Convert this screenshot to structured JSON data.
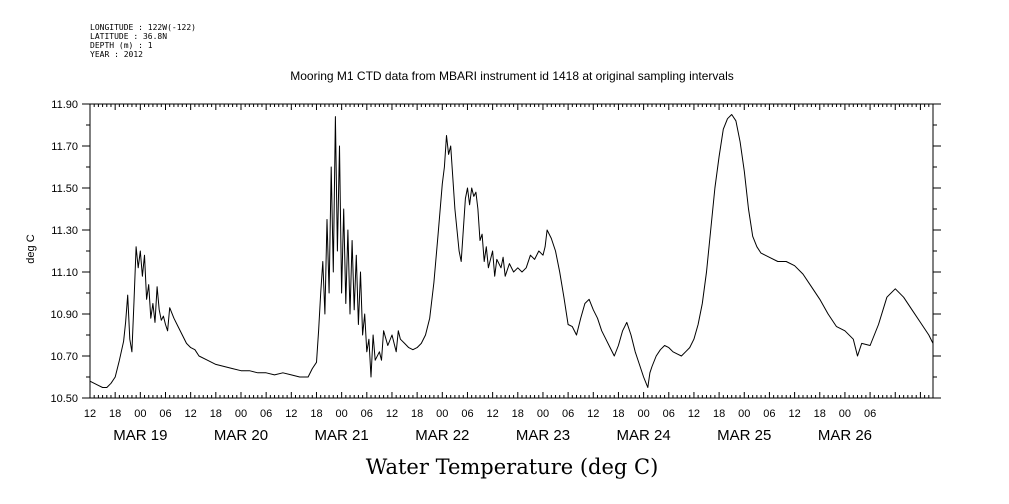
{
  "header_info": [
    "LONGITUDE : 122W(-122)",
    "LATITUDE : 36.8N",
    "DEPTH (m) : 1",
    "YEAR : 2012"
  ],
  "chart_data": {
    "type": "line",
    "title": "Mooring M1 CTD data from MBARI instrument id 1418 at original sampling intervals",
    "xlabel": "Water Temperature (deg C)",
    "ylabel": "deg C",
    "ylim": [
      10.5,
      11.9
    ],
    "yticks": [
      "10.50",
      "10.70",
      "10.90",
      "11.10",
      "11.30",
      "11.50",
      "11.70",
      "11.90"
    ],
    "xlim": [
      "2012-03-18T12:00",
      "2012-03-26T21:00"
    ],
    "hour_ticks": [
      "12",
      "18",
      "00",
      "06",
      "12",
      "18",
      "00",
      "06",
      "12",
      "18",
      "00",
      "06",
      "12",
      "18",
      "00",
      "06",
      "12",
      "18",
      "00",
      "06",
      "12",
      "18",
      "00",
      "06",
      "12",
      "18",
      "00",
      "06",
      "12",
      "18",
      "00",
      "06"
    ],
    "day_labels": [
      "MAR 19",
      "MAR 20",
      "MAR 21",
      "MAR 22",
      "MAR 23",
      "MAR 24",
      "MAR 25",
      "MAR 26"
    ],
    "line_color": "#000000",
    "series": [
      {
        "points": [
          [
            "2012-03-18T12:00",
            10.58
          ],
          [
            "2012-03-18T13:00",
            10.57
          ],
          [
            "2012-03-18T14:00",
            10.56
          ],
          [
            "2012-03-18T15:00",
            10.55
          ],
          [
            "2012-03-18T16:00",
            10.55
          ],
          [
            "2012-03-18T17:00",
            10.57
          ],
          [
            "2012-03-18T18:00",
            10.6
          ],
          [
            "2012-03-18T19:00",
            10.68
          ],
          [
            "2012-03-18T20:00",
            10.77
          ],
          [
            "2012-03-18T20:30",
            10.86
          ],
          [
            "2012-03-18T21:00",
            10.99
          ],
          [
            "2012-03-18T21:30",
            10.78
          ],
          [
            "2012-03-18T22:00",
            10.72
          ],
          [
            "2012-03-18T22:30",
            10.96
          ],
          [
            "2012-03-18T23:00",
            11.22
          ],
          [
            "2012-03-18T23:30",
            11.12
          ],
          [
            "2012-03-19T00:00",
            11.2
          ],
          [
            "2012-03-19T00:30",
            11.08
          ],
          [
            "2012-03-19T01:00",
            11.18
          ],
          [
            "2012-03-19T01:30",
            10.97
          ],
          [
            "2012-03-19T02:00",
            11.04
          ],
          [
            "2012-03-19T02:30",
            10.88
          ],
          [
            "2012-03-19T03:00",
            10.95
          ],
          [
            "2012-03-19T03:30",
            10.86
          ],
          [
            "2012-03-19T04:00",
            11.03
          ],
          [
            "2012-03-19T04:30",
            10.92
          ],
          [
            "2012-03-19T05:00",
            10.87
          ],
          [
            "2012-03-19T05:30",
            10.89
          ],
          [
            "2012-03-19T06:00",
            10.85
          ],
          [
            "2012-03-19T06:30",
            10.82
          ],
          [
            "2012-03-19T07:00",
            10.93
          ],
          [
            "2012-03-19T08:00",
            10.88
          ],
          [
            "2012-03-19T09:00",
            10.84
          ],
          [
            "2012-03-19T10:00",
            10.8
          ],
          [
            "2012-03-19T11:00",
            10.76
          ],
          [
            "2012-03-19T12:00",
            10.74
          ],
          [
            "2012-03-19T13:00",
            10.73
          ],
          [
            "2012-03-19T14:00",
            10.7
          ],
          [
            "2012-03-19T16:00",
            10.68
          ],
          [
            "2012-03-19T18:00",
            10.66
          ],
          [
            "2012-03-19T20:00",
            10.65
          ],
          [
            "2012-03-19T22:00",
            10.64
          ],
          [
            "2012-03-20T00:00",
            10.63
          ],
          [
            "2012-03-20T02:00",
            10.63
          ],
          [
            "2012-03-20T04:00",
            10.62
          ],
          [
            "2012-03-20T06:00",
            10.62
          ],
          [
            "2012-03-20T08:00",
            10.61
          ],
          [
            "2012-03-20T10:00",
            10.62
          ],
          [
            "2012-03-20T12:00",
            10.61
          ],
          [
            "2012-03-20T14:00",
            10.6
          ],
          [
            "2012-03-20T16:00",
            10.6
          ],
          [
            "2012-03-20T17:00",
            10.64
          ],
          [
            "2012-03-20T18:00",
            10.67
          ],
          [
            "2012-03-20T18:30",
            10.82
          ],
          [
            "2012-03-20T19:00",
            11.0
          ],
          [
            "2012-03-20T19:30",
            11.15
          ],
          [
            "2012-03-20T20:00",
            10.9
          ],
          [
            "2012-03-20T20:30",
            11.35
          ],
          [
            "2012-03-20T21:00",
            11.0
          ],
          [
            "2012-03-20T21:30",
            11.6
          ],
          [
            "2012-03-20T22:00",
            11.1
          ],
          [
            "2012-03-20T22:30",
            11.84
          ],
          [
            "2012-03-20T23:00",
            11.2
          ],
          [
            "2012-03-20T23:30",
            11.7
          ],
          [
            "2012-03-21T00:00",
            11.0
          ],
          [
            "2012-03-21T00:30",
            11.4
          ],
          [
            "2012-03-21T01:00",
            10.95
          ],
          [
            "2012-03-21T01:30",
            11.3
          ],
          [
            "2012-03-21T02:00",
            10.9
          ],
          [
            "2012-03-21T02:30",
            11.25
          ],
          [
            "2012-03-21T03:00",
            10.92
          ],
          [
            "2012-03-21T03:30",
            11.18
          ],
          [
            "2012-03-21T04:00",
            10.85
          ],
          [
            "2012-03-21T04:30",
            11.1
          ],
          [
            "2012-03-21T05:00",
            10.8
          ],
          [
            "2012-03-21T05:30",
            10.9
          ],
          [
            "2012-03-21T06:00",
            10.72
          ],
          [
            "2012-03-21T06:30",
            10.78
          ],
          [
            "2012-03-21T07:00",
            10.6
          ],
          [
            "2012-03-21T07:30",
            10.8
          ],
          [
            "2012-03-21T08:00",
            10.68
          ],
          [
            "2012-03-21T09:00",
            10.72
          ],
          [
            "2012-03-21T09:30",
            10.68
          ],
          [
            "2012-03-21T10:00",
            10.82
          ],
          [
            "2012-03-21T11:00",
            10.75
          ],
          [
            "2012-03-21T12:00",
            10.8
          ],
          [
            "2012-03-21T13:00",
            10.72
          ],
          [
            "2012-03-21T13:30",
            10.82
          ],
          [
            "2012-03-21T14:00",
            10.78
          ],
          [
            "2012-03-21T15:00",
            10.76
          ],
          [
            "2012-03-21T16:00",
            10.74
          ],
          [
            "2012-03-21T17:00",
            10.73
          ],
          [
            "2012-03-21T18:00",
            10.74
          ],
          [
            "2012-03-21T19:00",
            10.76
          ],
          [
            "2012-03-21T20:00",
            10.8
          ],
          [
            "2012-03-21T21:00",
            10.88
          ],
          [
            "2012-03-21T22:00",
            11.05
          ],
          [
            "2012-03-21T23:00",
            11.28
          ],
          [
            "2012-03-22T00:00",
            11.52
          ],
          [
            "2012-03-22T00:30",
            11.6
          ],
          [
            "2012-03-22T01:00",
            11.75
          ],
          [
            "2012-03-22T01:30",
            11.66
          ],
          [
            "2012-03-22T02:00",
            11.7
          ],
          [
            "2012-03-22T02:30",
            11.55
          ],
          [
            "2012-03-22T03:00",
            11.4
          ],
          [
            "2012-03-22T03:30",
            11.3
          ],
          [
            "2012-03-22T04:00",
            11.2
          ],
          [
            "2012-03-22T04:30",
            11.15
          ],
          [
            "2012-03-22T05:00",
            11.3
          ],
          [
            "2012-03-22T05:30",
            11.45
          ],
          [
            "2012-03-22T06:00",
            11.5
          ],
          [
            "2012-03-22T06:30",
            11.42
          ],
          [
            "2012-03-22T07:00",
            11.5
          ],
          [
            "2012-03-22T07:30",
            11.46
          ],
          [
            "2012-03-22T08:00",
            11.48
          ],
          [
            "2012-03-22T08:30",
            11.4
          ],
          [
            "2012-03-22T09:00",
            11.25
          ],
          [
            "2012-03-22T09:30",
            11.28
          ],
          [
            "2012-03-22T10:00",
            11.15
          ],
          [
            "2012-03-22T10:30",
            11.22
          ],
          [
            "2012-03-22T11:00",
            11.12
          ],
          [
            "2012-03-22T12:00",
            11.2
          ],
          [
            "2012-03-22T12:30",
            11.08
          ],
          [
            "2012-03-22T13:00",
            11.16
          ],
          [
            "2012-03-22T14:00",
            11.12
          ],
          [
            "2012-03-22T14:30",
            11.17
          ],
          [
            "2012-03-22T15:00",
            11.08
          ],
          [
            "2012-03-22T16:00",
            11.14
          ],
          [
            "2012-03-22T17:00",
            11.1
          ],
          [
            "2012-03-22T18:00",
            11.12
          ],
          [
            "2012-03-22T19:00",
            11.1
          ],
          [
            "2012-03-22T20:00",
            11.12
          ],
          [
            "2012-03-22T21:00",
            11.18
          ],
          [
            "2012-03-22T22:00",
            11.16
          ],
          [
            "2012-03-22T23:00",
            11.2
          ],
          [
            "2012-03-23T00:00",
            11.18
          ],
          [
            "2012-03-23T00:30",
            11.22
          ],
          [
            "2012-03-23T01:00",
            11.3
          ],
          [
            "2012-03-23T02:00",
            11.26
          ],
          [
            "2012-03-23T03:00",
            11.2
          ],
          [
            "2012-03-23T04:00",
            11.1
          ],
          [
            "2012-03-23T05:00",
            10.98
          ],
          [
            "2012-03-23T06:00",
            10.85
          ],
          [
            "2012-03-23T07:00",
            10.84
          ],
          [
            "2012-03-23T08:00",
            10.8
          ],
          [
            "2012-03-23T09:00",
            10.88
          ],
          [
            "2012-03-23T10:00",
            10.95
          ],
          [
            "2012-03-23T11:00",
            10.97
          ],
          [
            "2012-03-23T12:00",
            10.92
          ],
          [
            "2012-03-23T13:00",
            10.88
          ],
          [
            "2012-03-23T14:00",
            10.82
          ],
          [
            "2012-03-23T15:00",
            10.78
          ],
          [
            "2012-03-23T16:00",
            10.74
          ],
          [
            "2012-03-23T17:00",
            10.7
          ],
          [
            "2012-03-23T18:00",
            10.75
          ],
          [
            "2012-03-23T19:00",
            10.82
          ],
          [
            "2012-03-23T20:00",
            10.86
          ],
          [
            "2012-03-23T21:00",
            10.8
          ],
          [
            "2012-03-23T22:00",
            10.72
          ],
          [
            "2012-03-23T23:00",
            10.66
          ],
          [
            "2012-03-24T00:00",
            10.6
          ],
          [
            "2012-03-24T01:00",
            10.55
          ],
          [
            "2012-03-24T01:30",
            10.62
          ],
          [
            "2012-03-24T02:00",
            10.65
          ],
          [
            "2012-03-24T03:00",
            10.7
          ],
          [
            "2012-03-24T04:00",
            10.73
          ],
          [
            "2012-03-24T05:00",
            10.75
          ],
          [
            "2012-03-24T06:00",
            10.74
          ],
          [
            "2012-03-24T07:00",
            10.72
          ],
          [
            "2012-03-24T08:00",
            10.71
          ],
          [
            "2012-03-24T09:00",
            10.7
          ],
          [
            "2012-03-24T10:00",
            10.72
          ],
          [
            "2012-03-24T11:00",
            10.74
          ],
          [
            "2012-03-24T12:00",
            10.78
          ],
          [
            "2012-03-24T13:00",
            10.85
          ],
          [
            "2012-03-24T14:00",
            10.95
          ],
          [
            "2012-03-24T15:00",
            11.1
          ],
          [
            "2012-03-24T16:00",
            11.3
          ],
          [
            "2012-03-24T17:00",
            11.5
          ],
          [
            "2012-03-24T18:00",
            11.65
          ],
          [
            "2012-03-24T19:00",
            11.78
          ],
          [
            "2012-03-24T20:00",
            11.83
          ],
          [
            "2012-03-24T21:00",
            11.85
          ],
          [
            "2012-03-24T22:00",
            11.82
          ],
          [
            "2012-03-24T23:00",
            11.72
          ],
          [
            "2012-03-25T00:00",
            11.58
          ],
          [
            "2012-03-25T01:00",
            11.4
          ],
          [
            "2012-03-25T02:00",
            11.27
          ],
          [
            "2012-03-25T03:00",
            11.22
          ],
          [
            "2012-03-25T04:00",
            11.19
          ],
          [
            "2012-03-25T06:00",
            11.17
          ],
          [
            "2012-03-25T08:00",
            11.15
          ],
          [
            "2012-03-25T10:00",
            11.15
          ],
          [
            "2012-03-25T12:00",
            11.13
          ],
          [
            "2012-03-25T14:00",
            11.09
          ],
          [
            "2012-03-25T16:00",
            11.03
          ],
          [
            "2012-03-25T18:00",
            10.97
          ],
          [
            "2012-03-25T20:00",
            10.9
          ],
          [
            "2012-03-25T22:00",
            10.84
          ],
          [
            "2012-03-26T00:00",
            10.82
          ],
          [
            "2012-03-26T02:00",
            10.78
          ],
          [
            "2012-03-26T03:00",
            10.7
          ],
          [
            "2012-03-26T04:00",
            10.76
          ],
          [
            "2012-03-26T06:00",
            10.75
          ],
          [
            "2012-03-26T08:00",
            10.85
          ],
          [
            "2012-03-26T10:00",
            10.98
          ],
          [
            "2012-03-26T12:00",
            11.02
          ],
          [
            "2012-03-26T14:00",
            10.98
          ],
          [
            "2012-03-26T16:00",
            10.92
          ],
          [
            "2012-03-26T18:00",
            10.86
          ],
          [
            "2012-03-26T20:00",
            10.8
          ],
          [
            "2012-03-26T21:00",
            10.76
          ]
        ]
      }
    ]
  }
}
